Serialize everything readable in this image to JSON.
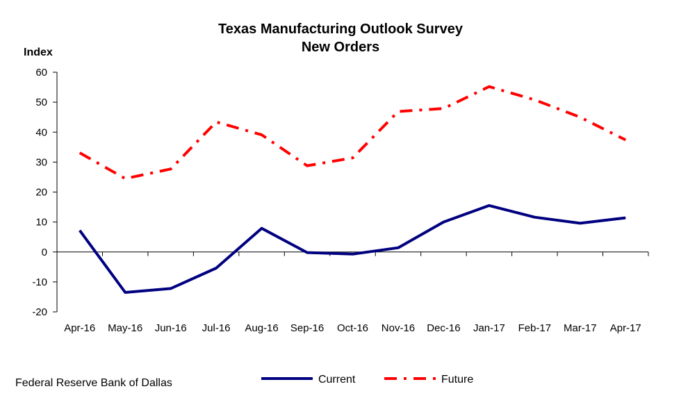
{
  "chart_data": {
    "type": "line",
    "title": "Texas Manufacturing Outlook Survey",
    "subtitle": "New Orders",
    "ylabel": "Index",
    "xlabel": "",
    "ylim": [
      -20,
      60
    ],
    "yticks": [
      "60",
      "50",
      "40",
      "30",
      "20",
      "10",
      "0",
      "-10",
      "-20"
    ],
    "categories": [
      "Apr-16",
      "May-16",
      "Jun-16",
      "Jul-16",
      "Aug-16",
      "Sep-16",
      "Oct-16",
      "Nov-16",
      "Dec-16",
      "Jan-17",
      "Feb-17",
      "Mar-17",
      "Apr-17"
    ],
    "series": [
      {
        "name": "Current",
        "color": "#000080",
        "style": "solid",
        "values": [
          7.2,
          -13.5,
          -12.2,
          -5.4,
          7.9,
          -0.2,
          -0.7,
          1.4,
          10.0,
          15.5,
          11.6,
          9.6,
          11.4
        ]
      },
      {
        "name": "Future",
        "color": "#ff0000",
        "style": "dash-dot",
        "values": [
          33.1,
          24.5,
          27.7,
          43.4,
          39.1,
          28.8,
          31.4,
          46.9,
          47.9,
          55.2,
          50.8,
          45.0,
          37.4
        ]
      }
    ],
    "grid": false,
    "legend_position": "bottom-center",
    "source": "Federal Reserve Bank of Dallas"
  }
}
